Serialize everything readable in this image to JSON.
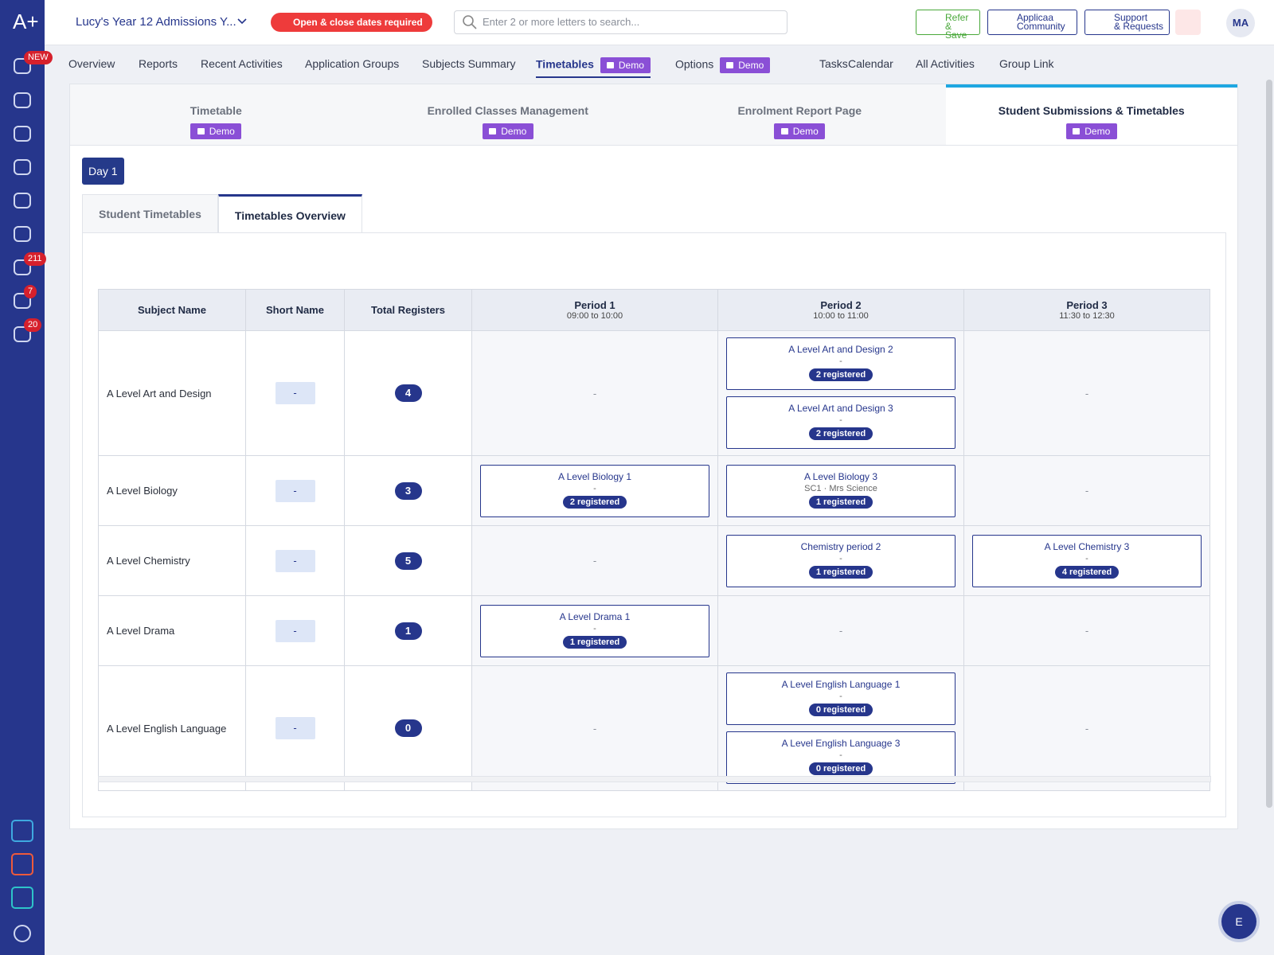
{
  "sidebar": {
    "logo": "A+",
    "badges": [
      "NEW",
      "211",
      "7",
      "20"
    ]
  },
  "header": {
    "title": "Lucy's Year 12 Admissions Y...",
    "alert": "Open & close dates required",
    "search_placeholder": "Enter 2 or more letters to search...",
    "refer": [
      "Refer",
      "& Save"
    ],
    "community": [
      "Applicaa",
      "Community"
    ],
    "support": [
      "Support",
      "& Requests"
    ],
    "avatar": "MA"
  },
  "nav": {
    "items": [
      {
        "label": "Overview"
      },
      {
        "label": "Reports"
      },
      {
        "label": "Recent Activities"
      },
      {
        "label": "Application Groups"
      },
      {
        "label": "Subjects Summary"
      },
      {
        "label": "Timetables",
        "badge": "Demo",
        "active": true
      },
      {
        "label": "Options",
        "badge": "Demo"
      },
      {
        "label": "Tasks"
      },
      {
        "label": "Calendar"
      },
      {
        "label": "All Activities"
      },
      {
        "label": "Group Link"
      }
    ]
  },
  "sub_tabs": [
    {
      "label": "Timetable",
      "badge": "Demo"
    },
    {
      "label": "Enrolled Classes Management",
      "badge": "Demo"
    },
    {
      "label": "Enrolment Report Page",
      "badge": "Demo"
    },
    {
      "label": "Student Submissions & Timetables",
      "badge": "Demo",
      "active": true
    }
  ],
  "day_button": "Day 1",
  "inner_tabs": [
    {
      "label": "Student Timetables"
    },
    {
      "label": "Timetables Overview",
      "active": true
    }
  ],
  "table": {
    "headers": [
      "Subject Name",
      "Short Name",
      "Total Registers"
    ],
    "periods": [
      {
        "name": "Period 1",
        "time": "09:00 to 10:00"
      },
      {
        "name": "Period 2",
        "time": "10:00 to 11:00"
      },
      {
        "name": "Period 3",
        "time": "11:30 to 12:30"
      }
    ],
    "rows": [
      {
        "subject": "A Level Art and Design",
        "short": "-",
        "total": 4,
        "cells": [
          "-",
          [
            {
              "name": "A Level Art and Design 2",
              "detail": "-",
              "registered": "2 registered"
            },
            {
              "name": "A Level Art and Design 3",
              "detail": "-",
              "registered": "2 registered"
            }
          ],
          "-"
        ]
      },
      {
        "subject": "A Level Biology",
        "short": "-",
        "total": 3,
        "cells": [
          [
            {
              "name": "A Level Biology 1",
              "detail": "-",
              "registered": "2 registered"
            }
          ],
          [
            {
              "name": "A Level Biology 3",
              "detail": "SC1 · Mrs Science",
              "registered": "1 registered"
            }
          ],
          "-"
        ]
      },
      {
        "subject": "A Level Chemistry",
        "short": "-",
        "total": 5,
        "cells": [
          "-",
          [
            {
              "name": "Chemistry period 2",
              "detail": "-",
              "registered": "1 registered"
            }
          ],
          [
            {
              "name": "A Level Chemistry 3",
              "detail": "-",
              "registered": "4 registered"
            }
          ]
        ]
      },
      {
        "subject": "A Level Drama",
        "short": "-",
        "total": 1,
        "cells": [
          [
            {
              "name": "A Level Drama 1",
              "detail": "-",
              "registered": "1 registered"
            }
          ],
          "-",
          "-"
        ]
      },
      {
        "subject": "A Level English Language",
        "short": "-",
        "total": 0,
        "cells": [
          "-",
          [
            {
              "name": "A Level English Language 1",
              "detail": "-",
              "registered": "0 registered"
            },
            {
              "name": "A Level English Language 3",
              "detail": "-",
              "registered": "0 registered"
            }
          ],
          "-"
        ]
      }
    ]
  },
  "fab": "E"
}
